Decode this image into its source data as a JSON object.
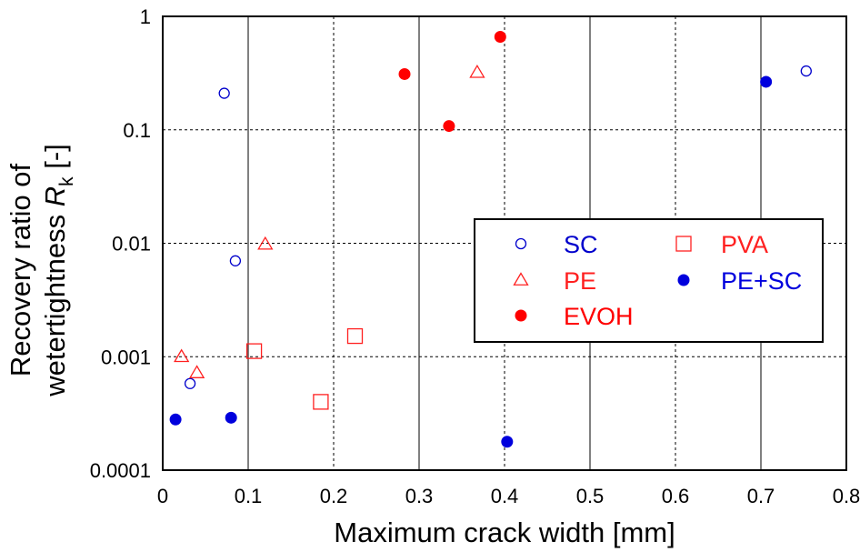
{
  "chart_data": {
    "type": "scatter",
    "title": "",
    "xlabel": "Maximum crack width [mm]",
    "ylabel_line1": "Recovery ratio of",
    "ylabel_line2_text": "wetertightness ",
    "ylabel_symbol": "R",
    "ylabel_subscript": "k",
    "ylabel_unit": " [-]",
    "xlim": [
      0,
      0.8
    ],
    "ylim": [
      0.0001,
      1
    ],
    "yscale": "log",
    "xticks": [
      0,
      0.1,
      0.2,
      0.3,
      0.4,
      0.5,
      0.6,
      0.7,
      0.8
    ],
    "xtick_labels": [
      "0",
      "0.1",
      "0.2",
      "0.3",
      "0.4",
      "0.5",
      "0.6",
      "0.7",
      "0.8"
    ],
    "yticks": [
      0.0001,
      0.001,
      0.01,
      0.1,
      1
    ],
    "ytick_labels": [
      "0.0001",
      "0.001",
      "0.01",
      "0.1",
      "1"
    ],
    "legend_position": "center-right",
    "series": [
      {
        "name": "SC",
        "marker": "open-circle",
        "color": "#0000cc",
        "x": [
          0.072,
          0.085,
          0.032,
          0.753
        ],
        "y": [
          0.21,
          0.007,
          0.00058,
          0.33
        ]
      },
      {
        "name": "PE",
        "marker": "open-triangle",
        "color": "#ff2020",
        "x": [
          0.12,
          0.022,
          0.04,
          0.368
        ],
        "y": [
          0.0098,
          0.001,
          0.00072,
          0.32
        ]
      },
      {
        "name": "EVOH",
        "marker": "filled-circle",
        "color": "#ff0000",
        "x": [
          0.283,
          0.335,
          0.395
        ],
        "y": [
          0.31,
          0.108,
          0.66
        ]
      },
      {
        "name": "PVA",
        "marker": "open-square",
        "color": "#ff2020",
        "x": [
          0.107,
          0.225,
          0.185
        ],
        "y": [
          0.00112,
          0.00152,
          0.0004
        ]
      },
      {
        "name": "PE+SC",
        "marker": "filled-circle",
        "color": "#0000dd",
        "x": [
          0.015,
          0.08,
          0.403,
          0.706
        ],
        "y": [
          0.00028,
          0.00029,
          0.000178,
          0.265
        ]
      }
    ]
  }
}
